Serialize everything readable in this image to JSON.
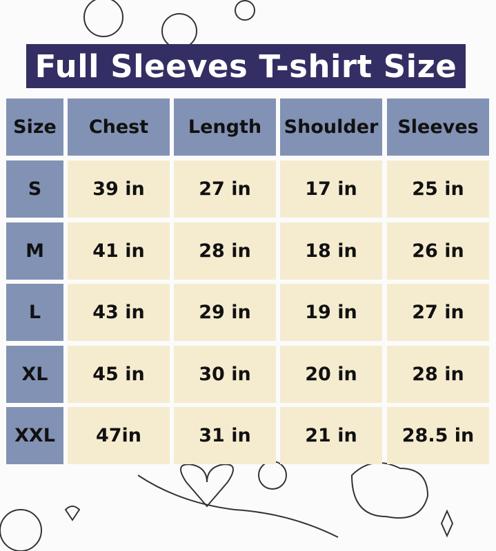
{
  "title": "Full Sleeves T-shirt Size",
  "columns": [
    "Size",
    "Chest",
    "Length",
    "Shoulder",
    "Sleeves"
  ],
  "rows": [
    [
      "S",
      "39 in",
      "27 in",
      "17 in",
      "25 in"
    ],
    [
      "M",
      "41 in",
      "28 in",
      "18 in",
      "26 in"
    ],
    [
      "L",
      "43 in",
      "29 in",
      "19 in",
      "27 in"
    ],
    [
      "XL",
      "45 in",
      "30 in",
      "20 in",
      "28 in"
    ],
    [
      "XXL",
      "47in",
      "31 in",
      "21 in",
      "28.5 in"
    ]
  ],
  "colors": {
    "title_bg": "#332e63",
    "header_bg": "#8292b4",
    "cell_bg": "#f5ecd0"
  }
}
